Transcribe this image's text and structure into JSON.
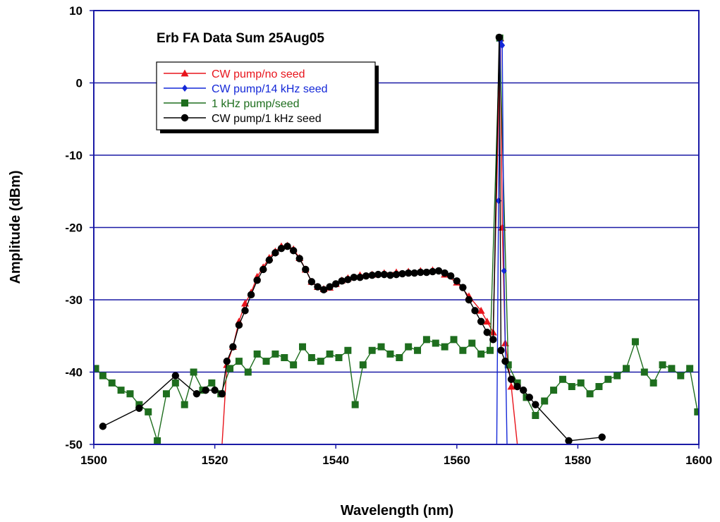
{
  "chart_data": {
    "type": "line",
    "title": "Erb FA Data Sum 25Aug05",
    "xlabel": "Wavelength (nm)",
    "ylabel": "Amplitude (dBm)",
    "xlim": [
      1500,
      1600
    ],
    "ylim": [
      -50,
      10
    ],
    "x_ticks": [
      1500,
      1520,
      1540,
      1560,
      1580,
      1600
    ],
    "y_ticks": [
      10,
      0,
      -10,
      -20,
      -30,
      -40,
      -50
    ],
    "grid": "horizontal",
    "legend_position": "top-left",
    "colors": {
      "cw_no_seed": "#e8141c",
      "cw_14khz": "#1428d8",
      "pump_1khz": "#1e6e1e",
      "cw_1khz": "#000000",
      "grid": "#1a1aa6",
      "frame": "#1a1aa6"
    },
    "series": [
      {
        "name": "CW pump/no seed",
        "color": "#e8141c",
        "marker": "triangle",
        "x": [
          1521.2,
          1522,
          1523,
          1524,
          1525,
          1526,
          1527,
          1528,
          1529,
          1530,
          1531,
          1532,
          1533,
          1534,
          1535,
          1536,
          1537,
          1538,
          1539,
          1540,
          1541,
          1542,
          1544,
          1546,
          1548,
          1550,
          1552,
          1554,
          1556,
          1558,
          1560,
          1562,
          1564,
          1565,
          1566,
          1567.2,
          1567.5,
          1568,
          1569,
          1570
        ],
        "y": [
          -50,
          -39,
          -36.5,
          -33,
          -30.5,
          -29,
          -26.8,
          -25.5,
          -24.2,
          -23.3,
          -22.6,
          -22.5,
          -23,
          -24.2,
          -25.8,
          -27.5,
          -28.2,
          -28.5,
          -28.3,
          -27.8,
          -27.3,
          -27,
          -26.6,
          -26.5,
          -26.3,
          -26.2,
          -26.1,
          -26,
          -25.9,
          -26.5,
          -27.6,
          -29.5,
          -31.5,
          -33,
          -34.5,
          6.2,
          -20,
          -36,
          -42,
          -50
        ]
      },
      {
        "name": "CW pump/14 kHz seed",
        "color": "#1428d8",
        "marker": "diamond",
        "x": [
          1566.6,
          1566.9,
          1567.2,
          1567.5,
          1567.8,
          1568.3
        ],
        "y": [
          -50,
          -16.3,
          5.8,
          5.2,
          -26,
          -50
        ]
      },
      {
        "name": "1 kHz pump/seed",
        "color": "#1e6e1e",
        "marker": "square",
        "x": [
          1500.3,
          1501.5,
          1503,
          1504.5,
          1506,
          1507.5,
          1509,
          1510.5,
          1512,
          1513.5,
          1515,
          1516.5,
          1518,
          1519.5,
          1521,
          1522.5,
          1524,
          1525.5,
          1527,
          1528.5,
          1530,
          1531.5,
          1533,
          1534.5,
          1536,
          1537.5,
          1539,
          1540.5,
          1542,
          1543.2,
          1544.5,
          1546,
          1547.5,
          1549,
          1550.5,
          1552,
          1553.5,
          1555,
          1556.5,
          1558,
          1559.5,
          1561,
          1562.5,
          1564,
          1565.5,
          1567.1,
          1568.5,
          1570,
          1571.5,
          1573,
          1574.5,
          1576,
          1577.5,
          1579,
          1580.5,
          1582,
          1583.5,
          1585,
          1586.5,
          1588,
          1589.5,
          1591,
          1592.5,
          1594,
          1595.5,
          1597,
          1598.5,
          1599.8
        ],
        "y": [
          -39.5,
          -40.5,
          -41.5,
          -42.5,
          -43,
          -44.5,
          -45.5,
          -49.5,
          -43,
          -41.5,
          -44.5,
          -40,
          -42.5,
          -41.5,
          -43,
          -39.5,
          -38.5,
          -40,
          -37.5,
          -38.5,
          -37.5,
          -38,
          -39,
          -36.5,
          -38,
          -38.5,
          -37.5,
          -38,
          -37,
          -44.5,
          -39,
          -37,
          -36.5,
          -37.5,
          -38,
          -36.5,
          -37,
          -35.5,
          -36,
          -36.5,
          -35.5,
          -37,
          -36,
          -37.5,
          -37,
          6.2,
          -39,
          -41.5,
          -43.5,
          -46,
          -44,
          -42.5,
          -41,
          -42,
          -41.5,
          -43,
          -42,
          -41,
          -40.5,
          -39.5,
          -35.8,
          -40,
          -41.5,
          -39,
          -39.5,
          -40.5,
          -39.5,
          -45.5
        ]
      },
      {
        "name": "CW pump/1 kHz seed",
        "color": "#000000",
        "marker": "circle",
        "x": [
          1501.5,
          1507.5,
          1513.5,
          1517,
          1518.5,
          1520,
          1521.2,
          1522,
          1523,
          1524,
          1525,
          1526,
          1527,
          1528,
          1529,
          1530,
          1531,
          1532,
          1533,
          1534,
          1535,
          1536,
          1537,
          1538,
          1539,
          1540,
          1541,
          1542,
          1543,
          1544,
          1545,
          1546,
          1547,
          1548,
          1549,
          1550,
          1551,
          1552,
          1553,
          1554,
          1555,
          1556,
          1557,
          1558,
          1559,
          1560,
          1561,
          1562,
          1563,
          1564,
          1565,
          1566,
          1567,
          1567.3,
          1568,
          1569,
          1570,
          1571,
          1572,
          1573,
          1578.5,
          1584
        ],
        "y": [
          -47.5,
          -45,
          -40.5,
          -43,
          -42.5,
          -42.5,
          -43,
          -38.5,
          -36.5,
          -33.5,
          -31.5,
          -29.3,
          -27.3,
          -25.8,
          -24.5,
          -23.5,
          -22.9,
          -22.6,
          -23.2,
          -24.3,
          -25.8,
          -27.5,
          -28.2,
          -28.6,
          -28.2,
          -27.8,
          -27.4,
          -27.2,
          -26.9,
          -26.9,
          -26.7,
          -26.6,
          -26.5,
          -26.5,
          -26.6,
          -26.5,
          -26.4,
          -26.3,
          -26.3,
          -26.2,
          -26.2,
          -26.1,
          -26,
          -26.3,
          -26.7,
          -27.4,
          -28.3,
          -30,
          -31.5,
          -33,
          -34.5,
          -35.5,
          6.3,
          -37,
          -38.5,
          -41,
          -42,
          -42.5,
          -43.5,
          -44.5,
          -49.5,
          -49
        ]
      }
    ]
  }
}
